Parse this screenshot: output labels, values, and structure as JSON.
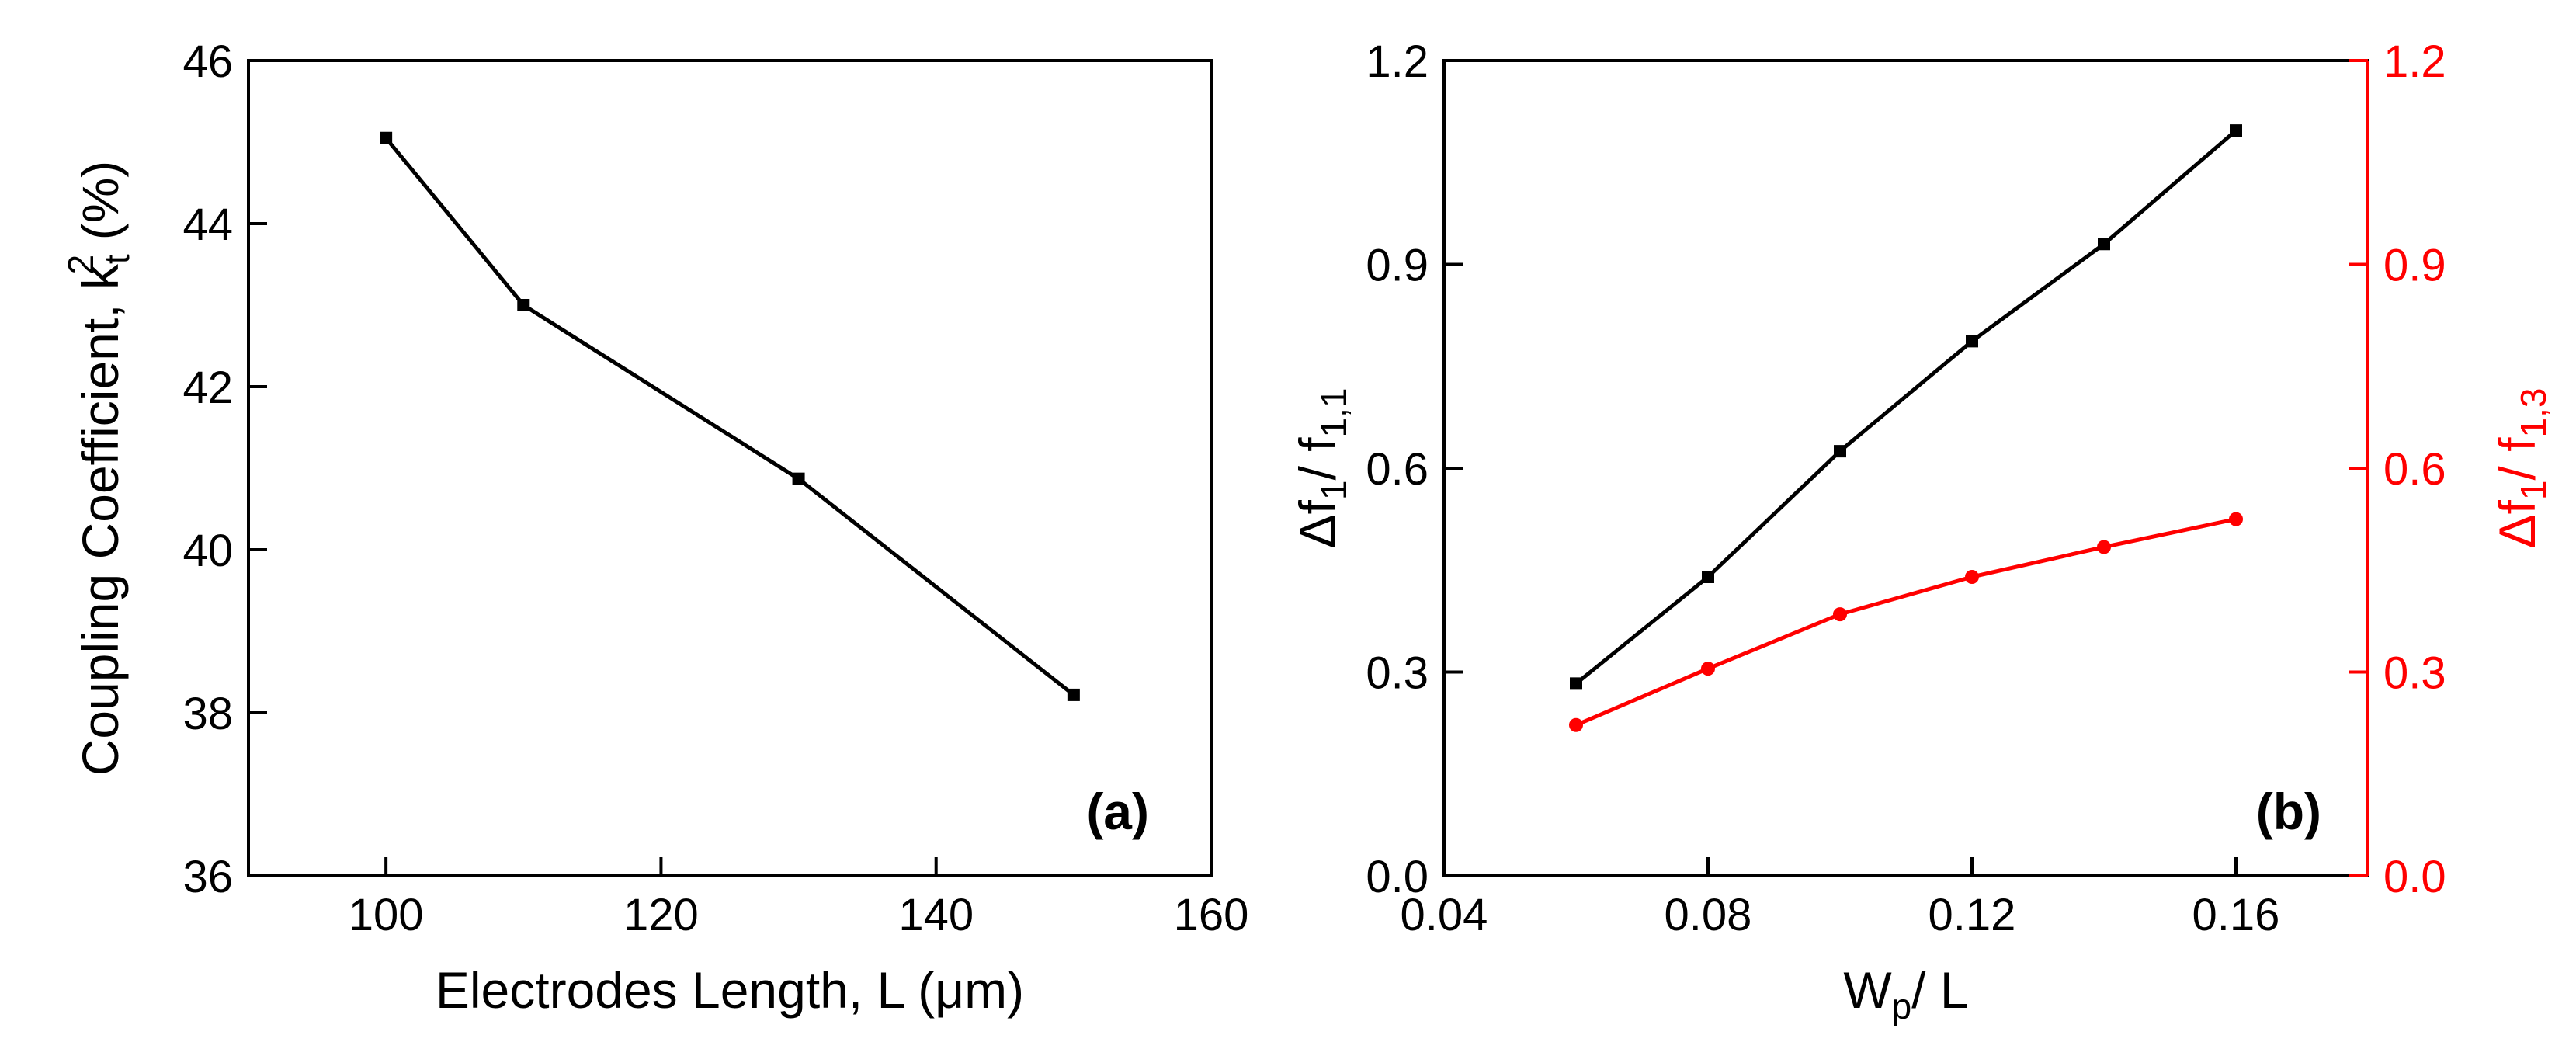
{
  "chart_data": [
    {
      "id": "a",
      "type": "line",
      "panel_label": "(a)",
      "title": "",
      "xlabel": "Electrodes Length, L (μm)",
      "ylabel": "Coupling Coefficient, k",
      "ylabel_sup": "2",
      "ylabel_sub": "t",
      "ylabel_suffix": " (%)",
      "xlim": [
        90,
        160
      ],
      "ylim": [
        36,
        46
      ],
      "xticks": [
        100,
        120,
        140,
        160
      ],
      "xtick_labels": [
        "100",
        "120",
        "140",
        "160"
      ],
      "yticks": [
        36,
        38,
        40,
        42,
        44,
        46
      ],
      "ytick_labels": [
        "36",
        "38",
        "40",
        "42",
        "44",
        "46"
      ],
      "grid": false,
      "series": [
        {
          "name": "k_t^2",
          "color": "#000000",
          "marker": "square",
          "x": [
            100,
            110,
            130,
            150
          ],
          "y": [
            45.05,
            43.0,
            40.87,
            38.22
          ]
        }
      ]
    },
    {
      "id": "b",
      "type": "line",
      "panel_label": "(b)",
      "title": "",
      "xlabel_main": "W",
      "xlabel_sub": "p",
      "xlabel_tail": "/ L",
      "xlim": [
        0.04,
        0.18
      ],
      "xticks": [
        0.04,
        0.08,
        0.12,
        0.16
      ],
      "xtick_labels": [
        "0.04",
        "0.08",
        "0.12",
        "0.16"
      ],
      "ylim_left": [
        0.0,
        1.2
      ],
      "ylim_right": [
        0.0,
        1.2
      ],
      "yticks": [
        0.0,
        0.3,
        0.6,
        0.9,
        1.2
      ],
      "ytick_labels_left": [
        "0.0",
        "0.3",
        "0.6",
        "0.9",
        "1.2"
      ],
      "ytick_labels_right": [
        "0.0",
        "0.3",
        "0.6",
        "0.9",
        "1.2"
      ],
      "ylabel_left": {
        "delta": "Δf",
        "sub1": "1",
        "mid": "/ f",
        "sub2": "1,1"
      },
      "ylabel_right": {
        "delta": "Δf",
        "sub1": "1",
        "mid": "/ f",
        "sub2": "1,3"
      },
      "grid": false,
      "series": [
        {
          "name": "Δf1 / f1,1",
          "axis": "left",
          "color": "#000000",
          "marker": "square",
          "x": [
            0.06,
            0.08,
            0.1,
            0.12,
            0.14,
            0.16
          ],
          "y": [
            0.283,
            0.44,
            0.625,
            0.787,
            0.93,
            1.097
          ]
        },
        {
          "name": "Δf1 / f1,3",
          "axis": "right",
          "color": "#ff0000",
          "marker": "circle",
          "x": [
            0.06,
            0.08,
            0.1,
            0.12,
            0.14,
            0.16
          ],
          "y": [
            0.222,
            0.305,
            0.385,
            0.44,
            0.484,
            0.525
          ]
        }
      ]
    }
  ]
}
